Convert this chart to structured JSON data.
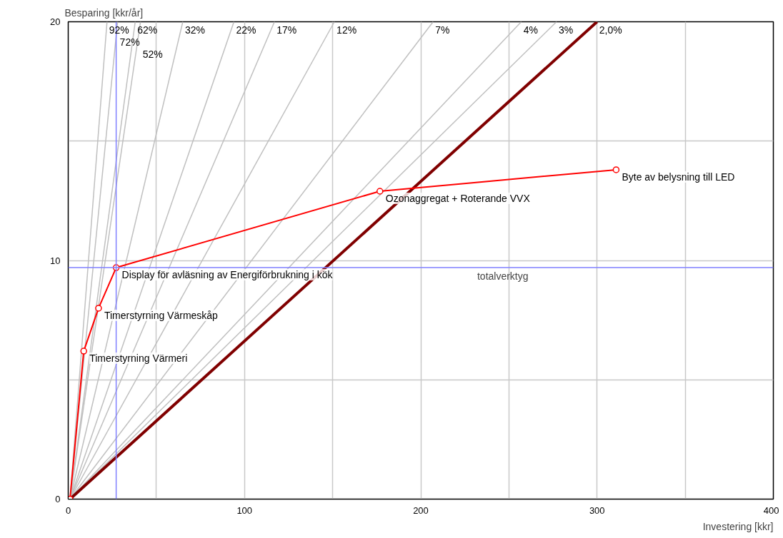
{
  "chart_data": {
    "type": "line",
    "xlabel": "Investering [kkr]",
    "ylabel": "Besparing [kkr/år]",
    "xlim": [
      0,
      400
    ],
    "ylim": [
      0,
      20
    ],
    "xticks": [
      0,
      {
        "value": 50,
        "label": null
      },
      100,
      {
        "value": 150,
        "label": null
      },
      200,
      {
        "value": 250,
        "label": null
      },
      300,
      {
        "value": 350,
        "label": null
      },
      400
    ],
    "yticks": [
      0,
      {
        "value": 5,
        "label": null
      },
      10,
      {
        "value": 15,
        "label": null
      },
      20
    ],
    "grid": true,
    "series": [
      {
        "name": "92%",
        "color": "#c0c0c0",
        "x": [
          1,
          22
        ],
        "values": [
          0,
          20
        ],
        "marker": "none"
      },
      {
        "name": "72%",
        "color": "#c0c0c0",
        "x": [
          1,
          28
        ],
        "values": [
          0,
          20
        ],
        "marker": "none"
      },
      {
        "name": "62%",
        "color": "#c0c0c0",
        "x": [
          1,
          38
        ],
        "values": [
          0,
          20
        ],
        "marker": "none"
      },
      {
        "name": "52%",
        "color": "#c0c0c0",
        "x": [
          1,
          41
        ],
        "values": [
          0,
          20
        ],
        "marker": "none"
      },
      {
        "name": "32%",
        "color": "#c0c0c0",
        "x": [
          1,
          65
        ],
        "values": [
          0,
          20
        ],
        "marker": "none"
      },
      {
        "name": "22%",
        "color": "#c0c0c0",
        "x": [
          1,
          94
        ],
        "values": [
          0,
          20
        ],
        "marker": "none"
      },
      {
        "name": "17%",
        "color": "#c0c0c0",
        "x": [
          1,
          117
        ],
        "values": [
          0,
          20
        ],
        "marker": "none"
      },
      {
        "name": "12%",
        "color": "#c0c0c0",
        "x": [
          1,
          151
        ],
        "values": [
          0,
          20
        ],
        "marker": "none"
      },
      {
        "name": "7%",
        "color": "#c0c0c0",
        "x": [
          1,
          207
        ],
        "values": [
          0,
          20
        ],
        "marker": "none"
      },
      {
        "name": "4%",
        "color": "#c0c0c0",
        "x": [
          1,
          257
        ],
        "values": [
          0,
          20
        ],
        "marker": "none"
      },
      {
        "name": "3%",
        "color": "#c0c0c0",
        "x": [
          1,
          277
        ],
        "values": [
          0,
          20
        ],
        "marker": "none"
      },
      {
        "name": "2,0%",
        "color": "#800000",
        "x": [
          1,
          300
        ],
        "values": [
          0,
          20
        ],
        "marker": "none"
      },
      {
        "color": "#ff0000",
        "x": [
          1,
          8.8,
          17.2,
          27.2,
          176.8,
          310.8
        ],
        "values": [
          0,
          6.2,
          8.0,
          9.7,
          12.9,
          13.8
        ],
        "marker": "circle",
        "value_labels": [
          null,
          "Timerstyrning Värmeri",
          "Timerstyrning Värmeskåp",
          "Display för avläsning av Energiförbrukning i kök",
          "Ozonaggregat + Roterande VVX",
          "Byte av belysning till LED"
        ]
      }
    ],
    "ref_lines": [
      {
        "axis": "x",
        "value": 27.2,
        "color": "#8080ff"
      },
      {
        "axis": "y",
        "value": 9.7,
        "color": "#8080ff",
        "label": "totalverktyg"
      }
    ]
  }
}
